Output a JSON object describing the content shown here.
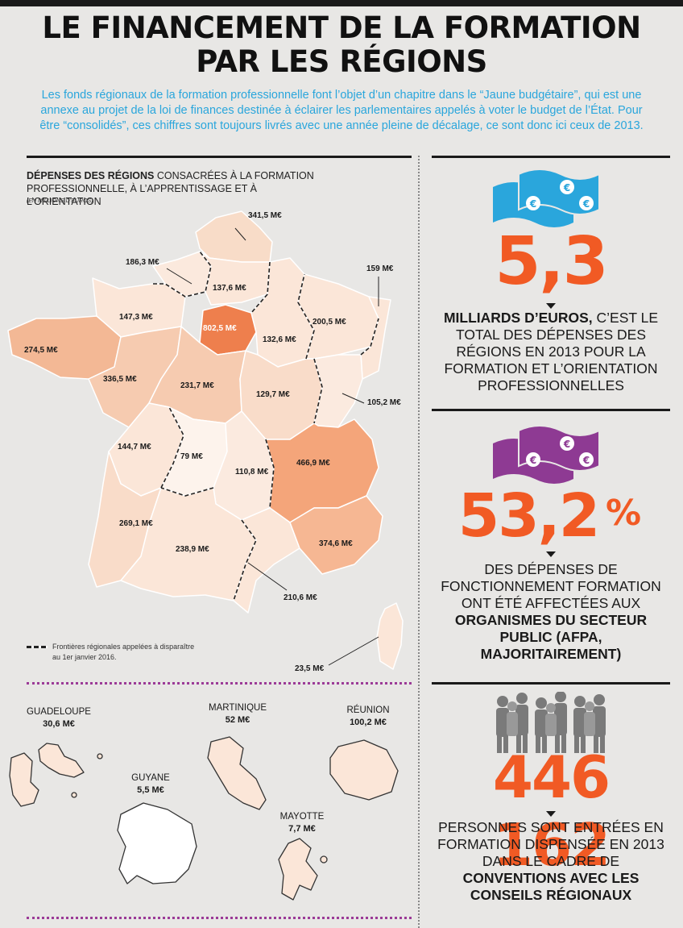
{
  "title": {
    "line1": "LE FINANCEMENT DE LA FORMATION",
    "line2": "PAR LES RÉGIONS"
  },
  "intro": "Les fonds régionaux de la formation professionnelle font l’objet d’un chapitre dans le “Jaune budgétaire”, qui est une annexe au projet de la loi de finances destinée à éclairer les parlementaires appelés à voter le budget de l’État. Pour être “consolidés”, ces chiffres sont toujours livrés avec une année pleine de décalage, ce sont donc ici ceux de 2013.",
  "map": {
    "title_bold": "DÉPENSES DES RÉGIONS",
    "title_rest": " CONSACRÉES À LA FORMATION PROFESSIONNELLE, À L’APPRENTISSAGE ET À L’ORIENTATION",
    "unit": "(EN MILLIONS D’EUROS)",
    "legend": "Frontières régionales appelées à disparaître au 1er janvier 2016.",
    "regions": [
      {
        "name": "Nord-Pas-de-Calais",
        "value": "341,5 M€"
      },
      {
        "name": "Picardie",
        "value": "137,6 M€"
      },
      {
        "name": "Haute-Normandie",
        "value": "186,3 M€"
      },
      {
        "name": "Basse-Normandie",
        "value": "147,3 M€"
      },
      {
        "name": "Île-de-France",
        "value": "802,5 M€"
      },
      {
        "name": "Champagne-Ardenne",
        "value": "132,6 M€"
      },
      {
        "name": "Lorraine",
        "value": "200,5 M€"
      },
      {
        "name": "Alsace",
        "value": "159 M€"
      },
      {
        "name": "Bretagne",
        "value": "274,5 M€"
      },
      {
        "name": "Pays de la Loire",
        "value": "336,5 M€"
      },
      {
        "name": "Centre",
        "value": "231,7 M€"
      },
      {
        "name": "Bourgogne",
        "value": "129,7 M€"
      },
      {
        "name": "Franche-Comté",
        "value": "105,2 M€"
      },
      {
        "name": "Poitou-Charentes",
        "value": "144,7 M€"
      },
      {
        "name": "Limousin",
        "value": "79 M€"
      },
      {
        "name": "Auvergne",
        "value": "110,8 M€"
      },
      {
        "name": "Rhône-Alpes",
        "value": "466,9 M€"
      },
      {
        "name": "Aquitaine",
        "value": "269,1 M€"
      },
      {
        "name": "Midi-Pyrénées",
        "value": "238,9 M€"
      },
      {
        "name": "Languedoc-Roussillon",
        "value": "210,6 M€"
      },
      {
        "name": "Provence-Alpes-Côte d’Azur",
        "value": "374,6 M€"
      },
      {
        "name": "Corse",
        "value": "23,5 M€"
      }
    ],
    "overseas": [
      {
        "name": "GUADELOUPE",
        "value": "30,6 M€"
      },
      {
        "name": "MARTINIQUE",
        "value": "52 M€"
      },
      {
        "name": "RÉUNION",
        "value": "100,2 M€"
      },
      {
        "name": "GUYANE",
        "value": "5,5 M€"
      },
      {
        "name": "MAYOTTE",
        "value": "7,7 M€"
      }
    ]
  },
  "stats": [
    {
      "number": "5,3",
      "text_bold": "MILLIARDS D’EUROS,",
      "text_rest": " C’EST LE TOTAL DES DÉPENSES DES RÉGIONS EN 2013 POUR LA FORMATION ET L’ORIENTATION PROFESSIONNELLES",
      "icon": "euro-banknotes-icon",
      "color": "#2aa6dc"
    },
    {
      "number": "53,2",
      "unit": "%",
      "text_pre": "DES DÉPENSES DE FONCTIONNEMENT FORMATION ONT ÉTÉ AFFECTÉES AUX ",
      "text_bold": "ORGANISMES DU SECTEUR PUBLIC (AFPA, MAJORITAIREMENT)",
      "icon": "euro-banknotes-icon",
      "color": "#8e3a93"
    },
    {
      "number": "446 162",
      "text_pre": "PERSONNES SONT ENTRÉES EN FORMATION DISPENSÉE EN 2013 DANS LE CADRE DE ",
      "text_bold": "CONVENTIONS AVEC LES CONSEILS RÉGIONAUX",
      "icon": "crowd-icon",
      "color": "#7a7a7a"
    }
  ],
  "colors": {
    "accent": "#f15a24",
    "intro": "#2aa6dc",
    "dotted": "#9b3b97",
    "idf": "#ee7f4d",
    "rhone": "#f4a57a"
  }
}
